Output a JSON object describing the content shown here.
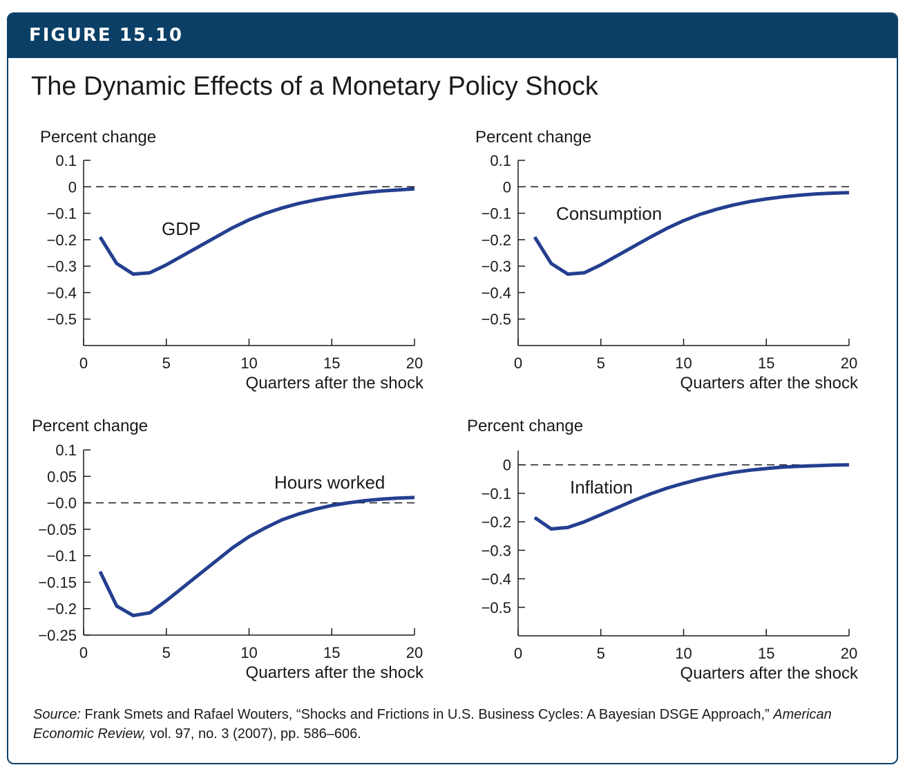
{
  "figure": {
    "label": "FIGURE 15.10",
    "title": "The Dynamic Effects of a Monetary Policy Shock"
  },
  "source": {
    "lead": "Source:",
    "text": " Frank Smets and Rafael Wouters, “Shocks and Frictions in U.S. Business Cycles: A Bayesian DSGE Approach,” ",
    "journal": "American Economic Review,",
    "details": " vol. 97, no. 3 (2007), pp. 586–606."
  },
  "colors": {
    "banner": "#0b3f66",
    "line": "#243f8f",
    "axis": "#1a1a1a"
  },
  "chart_data": [
    {
      "type": "line",
      "ylabel": "Percent change",
      "xlabel": "Quarters after the shock",
      "annotation": "GDP",
      "xlim": [
        0,
        20
      ],
      "ylim": [
        -0.6,
        0.1
      ],
      "xticks": [
        0,
        5,
        10,
        15,
        20
      ],
      "xtick_labels": [
        "0",
        "5",
        "10",
        "15",
        "20"
      ],
      "yticks": [
        0.1,
        0,
        -0.1,
        -0.2,
        -0.3,
        -0.4,
        -0.5
      ],
      "ytick_labels": [
        "0.1",
        "0",
        "−0.1",
        "−0.2",
        "−0.3",
        "−0.4",
        "−0.5"
      ],
      "zero_line": 0,
      "x": [
        1,
        2,
        3,
        4,
        5,
        6,
        7,
        8,
        9,
        10,
        11,
        12,
        13,
        14,
        15,
        16,
        17,
        18,
        19,
        20
      ],
      "values": [
        -0.19,
        -0.29,
        -0.33,
        -0.325,
        -0.295,
        -0.26,
        -0.225,
        -0.19,
        -0.155,
        -0.125,
        -0.1,
        -0.08,
        -0.063,
        -0.05,
        -0.039,
        -0.03,
        -0.022,
        -0.016,
        -0.012,
        -0.008
      ]
    },
    {
      "type": "line",
      "ylabel": "Percent change",
      "xlabel": "Quarters after the shock",
      "annotation": "Consumption",
      "xlim": [
        0,
        20
      ],
      "ylim": [
        -0.6,
        0.1
      ],
      "xticks": [
        0,
        5,
        10,
        15,
        20
      ],
      "xtick_labels": [
        "0",
        "5",
        "10",
        "15",
        "20"
      ],
      "yticks": [
        0.1,
        0,
        -0.1,
        -0.2,
        -0.3,
        -0.4,
        -0.5
      ],
      "ytick_labels": [
        "0.1",
        "0",
        "−0.1",
        "−0.2",
        "−0.3",
        "−0.4",
        "−0.5"
      ],
      "zero_line": 0,
      "x": [
        1,
        2,
        3,
        4,
        5,
        6,
        7,
        8,
        9,
        10,
        11,
        12,
        13,
        14,
        15,
        16,
        17,
        18,
        19,
        20
      ],
      "values": [
        -0.19,
        -0.29,
        -0.33,
        -0.325,
        -0.295,
        -0.26,
        -0.225,
        -0.19,
        -0.157,
        -0.128,
        -0.104,
        -0.085,
        -0.069,
        -0.056,
        -0.046,
        -0.038,
        -0.032,
        -0.027,
        -0.024,
        -0.022
      ]
    },
    {
      "type": "line",
      "ylabel": "Percent change",
      "xlabel": "Quarters after the shock",
      "annotation": "Hours worked",
      "xlim": [
        0,
        20
      ],
      "ylim": [
        -0.25,
        0.1
      ],
      "xticks": [
        0,
        5,
        10,
        15,
        20
      ],
      "xtick_labels": [
        "0",
        "5",
        "10",
        "15",
        "20"
      ],
      "yticks": [
        0.1,
        0.05,
        0,
        -0.05,
        -0.1,
        -0.15,
        -0.2,
        -0.25
      ],
      "ytick_labels": [
        "0.1",
        "0.05",
        "−0.0",
        "−0.05",
        "−0.1",
        "−0.15",
        "−0.2",
        "−0.25"
      ],
      "zero_line": 0,
      "x": [
        1,
        2,
        3,
        4,
        5,
        6,
        7,
        8,
        9,
        10,
        11,
        12,
        13,
        14,
        15,
        16,
        17,
        18,
        19,
        20
      ],
      "values": [
        -0.13,
        -0.195,
        -0.213,
        -0.208,
        -0.185,
        -0.16,
        -0.135,
        -0.11,
        -0.085,
        -0.064,
        -0.047,
        -0.032,
        -0.021,
        -0.012,
        -0.005,
        0.0,
        0.004,
        0.007,
        0.009,
        0.01
      ]
    },
    {
      "type": "line",
      "ylabel": "Percent change",
      "xlabel": "Quarters after the shock",
      "annotation": "Inflation",
      "xlim": [
        0,
        20
      ],
      "ylim": [
        -0.6,
        0.05
      ],
      "xticks": [
        0,
        5,
        10,
        15,
        20
      ],
      "xtick_labels": [
        "0",
        "5",
        "10",
        "15",
        "20"
      ],
      "yticks": [
        0,
        -0.1,
        -0.2,
        -0.3,
        -0.4,
        -0.5
      ],
      "ytick_labels": [
        "0",
        "−0.1",
        "−0.2",
        "−0.3",
        "−0.4",
        "−0.5"
      ],
      "zero_line": 0,
      "x": [
        1,
        2,
        3,
        4,
        5,
        6,
        7,
        8,
        9,
        10,
        11,
        12,
        13,
        14,
        15,
        16,
        17,
        18,
        19,
        20
      ],
      "values": [
        -0.185,
        -0.225,
        -0.22,
        -0.2,
        -0.175,
        -0.15,
        -0.125,
        -0.102,
        -0.082,
        -0.065,
        -0.05,
        -0.037,
        -0.027,
        -0.019,
        -0.013,
        -0.008,
        -0.005,
        -0.003,
        -0.001,
        0.0
      ]
    }
  ]
}
